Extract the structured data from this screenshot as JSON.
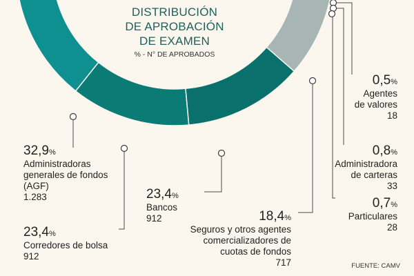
{
  "chart_data": {
    "type": "pie",
    "title": [
      "DISTRIBUCIÓN",
      "DE APROBACIÓN",
      "DE EXAMEN"
    ],
    "subtitle": "% - N° DE APROBADOS",
    "source": "FUENTE: CAMV",
    "slices": [
      {
        "label": [
          "Administradoras",
          "generales de fondos",
          "(AGF)"
        ],
        "percent": "32,9",
        "count": "1.283",
        "color": "#0e9090"
      },
      {
        "label": [
          "Corredores de bolsa"
        ],
        "percent": "23,4",
        "count": "912",
        "color": "#0b7b76"
      },
      {
        "label": [
          "Bancos"
        ],
        "percent": "23,4",
        "count": "912",
        "color": "#0a706c"
      },
      {
        "label": [
          "Seguros y otros agentes",
          "comercializadores de",
          "cuotas de fondos"
        ],
        "percent": "18,4",
        "count": "717",
        "color": "#a7b5b4"
      },
      {
        "label": [
          "Particulares"
        ],
        "percent": "0,7",
        "count": "28",
        "color": "#586e6e"
      },
      {
        "label": [
          "Administradora",
          "de carteras"
        ],
        "percent": "0,8",
        "count": "33",
        "color": "#3f5a59"
      },
      {
        "label": [
          "Agentes",
          "de valores"
        ],
        "percent": "0,5",
        "count": "18",
        "color": "#6e8483"
      }
    ]
  }
}
